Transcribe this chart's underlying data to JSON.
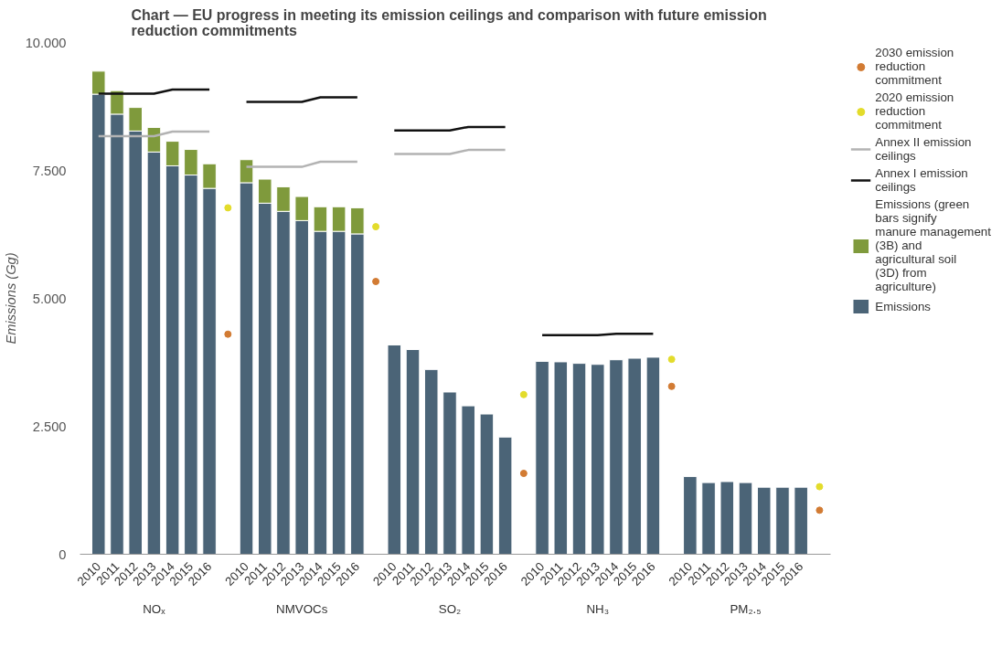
{
  "chart_data": {
    "type": "bar",
    "title": "Chart — EU progress in meeting its emission ceilings and comparison with future emission reduction commitments",
    "ylabel": "Emissions (Gg)",
    "categories": [
      "2010",
      "2011",
      "2012",
      "2013",
      "2014",
      "2015",
      "2016",
      null,
      "2010",
      "2011",
      "2012",
      "2013",
      "2014",
      "2015",
      "2016",
      null,
      "2010",
      "2011",
      "2012",
      "2013",
      "2014",
      "2015",
      "2016",
      null,
      "2010",
      "2011",
      "2012",
      "2013",
      "2014",
      "2015",
      "2016",
      null,
      "2010",
      "2011",
      "2012",
      "2013",
      "2014",
      "2015",
      "2016",
      null
    ],
    "annotations": [
      "NOₓ",
      "NMVOCs",
      "SO₂",
      "NH₃",
      "PM₂.₅"
    ],
    "stacked": true,
    "ylim": [
      0,
      10000
    ],
    "yticks": [
      0,
      {
        "value": 2500,
        "label": "2.500"
      },
      {
        "value": 5000,
        "label": "5.000"
      },
      {
        "value": 7500,
        "label": "7.500"
      },
      {
        "value": 10000,
        "label": "10.000"
      }
    ],
    "grid": false,
    "legend": "top right",
    "series": [
      {
        "name": "Emissions",
        "color": "#4b6477",
        "values": [
          8990,
          8600,
          8270,
          7860,
          7590,
          7410,
          7150,
          null,
          7260,
          6860,
          6700,
          6520,
          6310,
          6310,
          6260,
          null,
          4090,
          4000,
          3610,
          3170,
          2900,
          2740,
          2290,
          null,
          3770,
          3760,
          3730,
          3710,
          3800,
          3830,
          3850,
          null,
          1520,
          1400,
          1420,
          1400,
          1310,
          1310,
          1310,
          null
        ]
      },
      {
        "name": "Emissions (green bars signify manure management (3B) and agricultural soil (3D) from agriculture)",
        "color": "#7f9a3c",
        "values": [
          450,
          460,
          460,
          480,
          480,
          500,
          480,
          null,
          450,
          470,
          480,
          470,
          480,
          480,
          510,
          null,
          0,
          0,
          0,
          0,
          0,
          0,
          0,
          null,
          0,
          0,
          0,
          0,
          0,
          0,
          0,
          null,
          0,
          0,
          0,
          0,
          0,
          0,
          0,
          null
        ]
      },
      {
        "name": "Annex I emission ceilings",
        "type": "line",
        "color": "#111111",
        "values": [
          9000,
          9000,
          9000,
          9000,
          9080,
          9080,
          9080,
          null,
          8840,
          8840,
          8840,
          8840,
          8930,
          8930,
          8930,
          null,
          8280,
          8280,
          8280,
          8280,
          8350,
          8350,
          8350,
          null,
          4280,
          4280,
          4280,
          4280,
          4310,
          4310,
          4310,
          null,
          null,
          null,
          null,
          null,
          null,
          null,
          null,
          null
        ]
      },
      {
        "name": "Annex II emission ceilings",
        "type": "line",
        "color": "#b3b3b3",
        "values": [
          8170,
          8170,
          8170,
          8170,
          8260,
          8260,
          8260,
          null,
          7570,
          7570,
          7570,
          7570,
          7670,
          7670,
          7670,
          null,
          7820,
          7820,
          7820,
          7820,
          7900,
          7900,
          7900,
          null,
          null,
          null,
          null,
          null,
          null,
          null,
          null,
          null,
          null,
          null,
          null,
          null,
          null,
          null,
          null,
          null
        ]
      },
      {
        "name": "2020 emission reduction commitment",
        "type": "scatter",
        "marker": "circle",
        "color": "#e3dc2b",
        "values": [
          null,
          null,
          null,
          null,
          null,
          null,
          null,
          6770,
          null,
          null,
          null,
          null,
          null,
          null,
          null,
          6400,
          null,
          null,
          null,
          null,
          null,
          null,
          null,
          3120,
          null,
          null,
          null,
          null,
          null,
          null,
          null,
          3810,
          null,
          null,
          null,
          null,
          null,
          null,
          null,
          1320
        ]
      },
      {
        "name": "2030 emission reduction commitment",
        "type": "scatter",
        "marker": "circle",
        "color": "#d27b33",
        "values": [
          null,
          null,
          null,
          null,
          null,
          null,
          null,
          4300,
          null,
          null,
          null,
          null,
          null,
          null,
          null,
          5330,
          null,
          null,
          null,
          null,
          null,
          null,
          null,
          1580,
          null,
          null,
          null,
          null,
          null,
          null,
          null,
          3280,
          null,
          null,
          null,
          null,
          null,
          null,
          null,
          860
        ]
      }
    ]
  }
}
